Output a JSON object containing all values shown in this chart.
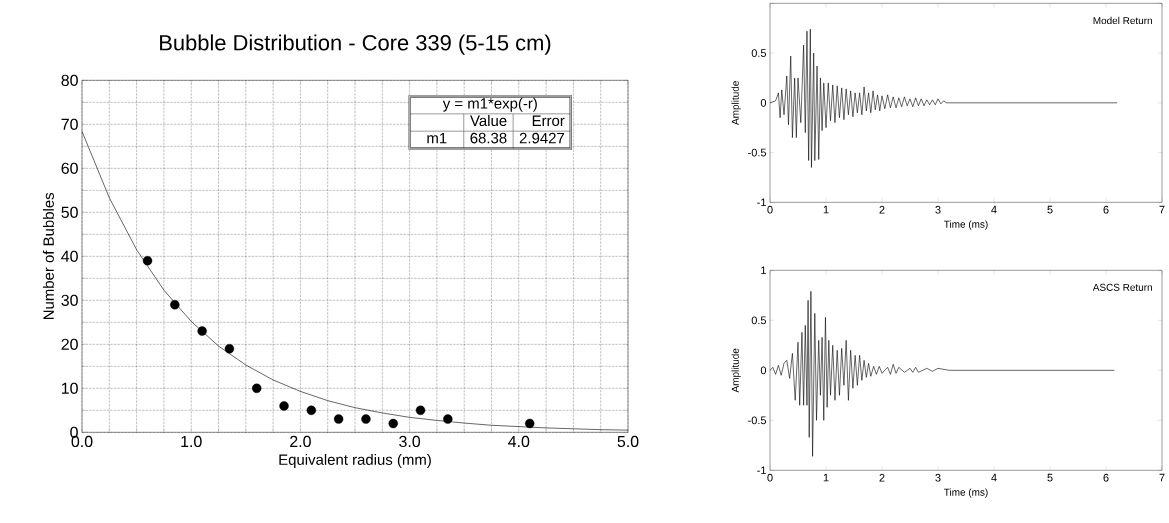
{
  "chart_data": [
    {
      "type": "scatter",
      "title": "Bubble Distribution - Core 339 (5-15 cm)",
      "xlabel": "Equivalent radius (mm)",
      "ylabel": "Number of Bubbles",
      "annotations": [
        "y = m1*exp(-r)",
        "Value",
        "Error",
        "m1",
        "68.38",
        "2.9427"
      ],
      "xlim": [
        0,
        5
      ],
      "ylim": [
        0,
        80
      ],
      "xticks": [
        {
          "value": 0,
          "label": "0.0"
        },
        {
          "value": 0.25,
          "label": null
        },
        {
          "value": 0.5,
          "label": null
        },
        {
          "value": 0.75,
          "label": null
        },
        {
          "value": 1,
          "label": "1.0"
        },
        {
          "value": 1.25,
          "label": null
        },
        {
          "value": 1.5,
          "label": null
        },
        {
          "value": 1.75,
          "label": null
        },
        {
          "value": 2,
          "label": "2.0"
        },
        {
          "value": 2.25,
          "label": null
        },
        {
          "value": 2.5,
          "label": null
        },
        {
          "value": 2.75,
          "label": null
        },
        {
          "value": 3,
          "label": "3.0"
        },
        {
          "value": 3.25,
          "label": null
        },
        {
          "value": 3.5,
          "label": null
        },
        {
          "value": 3.75,
          "label": null
        },
        {
          "value": 4,
          "label": "4.0"
        },
        {
          "value": 4.25,
          "label": null
        },
        {
          "value": 4.5,
          "label": null
        },
        {
          "value": 4.75,
          "label": null
        },
        {
          "value": 5,
          "label": "5.0"
        }
      ],
      "yticks": [
        0,
        {
          "value": 5,
          "label": null
        },
        10,
        {
          "value": 15,
          "label": null
        },
        20,
        {
          "value": 25,
          "label": null
        },
        30,
        {
          "value": 35,
          "label": null
        },
        40,
        {
          "value": 45,
          "label": null
        },
        50,
        {
          "value": 55,
          "label": null
        },
        60,
        {
          "value": 65,
          "label": null
        },
        70,
        {
          "value": 75,
          "label": null
        },
        80
      ],
      "grid": true,
      "series": [
        {
          "type": "scatter",
          "color": "#000000",
          "x": [
            0.6,
            0.85,
            1.1,
            1.35,
            1.6,
            1.85,
            2.1,
            2.35,
            2.6,
            2.85,
            3.1,
            3.35,
            4.1
          ],
          "values": [
            39,
            29,
            23,
            19,
            10,
            6,
            5,
            3,
            3,
            2,
            5,
            3,
            2
          ]
        },
        {
          "type": "line",
          "color": "#000000",
          "x": [
            0,
            0.25,
            0.5,
            0.75,
            1,
            1.25,
            1.5,
            1.75,
            2,
            2.25,
            2.5,
            2.75,
            3,
            3.25,
            3.5,
            3.75,
            4,
            4.25,
            4.5,
            4.75,
            5
          ],
          "values": [
            68.4,
            53.3,
            41.5,
            32.3,
            25.2,
            19.6,
            15.3,
            11.9,
            9.3,
            7.2,
            5.6,
            4.4,
            3.4,
            2.7,
            2.1,
            1.6,
            1.3,
            1.0,
            0.8,
            0.6,
            0.5
          ]
        }
      ]
    },
    {
      "type": "line",
      "xlabel": "Time (ms)",
      "ylabel": "Amplitude",
      "annotations": [
        "Model Return"
      ],
      "xlim": [
        0,
        7
      ],
      "ylim": [
        -1,
        1
      ],
      "xticks": [
        0,
        1,
        2,
        3,
        4,
        5,
        6,
        7
      ],
      "yticks": [
        -1,
        -0.5,
        0,
        0.5,
        {
          "value": 1,
          "label": null
        }
      ],
      "series": [
        {
          "color": "#000000",
          "x": [
            0,
            0.1,
            0.15,
            0.18,
            0.21,
            0.25,
            0.3,
            0.33,
            0.37,
            0.4,
            0.44,
            0.47,
            0.5,
            0.55,
            0.6,
            0.63,
            0.66,
            0.69,
            0.72,
            0.74,
            0.78,
            0.8,
            0.84,
            0.87,
            0.9,
            0.93,
            0.96,
            1.0,
            1.04,
            1.08,
            1.12,
            1.16,
            1.2,
            1.24,
            1.28,
            1.32,
            1.36,
            1.4,
            1.44,
            1.48,
            1.52,
            1.56,
            1.6,
            1.64,
            1.68,
            1.72,
            1.76,
            1.8,
            1.84,
            1.88,
            1.92,
            1.96,
            2.0,
            2.05,
            2.1,
            2.15,
            2.2,
            2.25,
            2.3,
            2.35,
            2.4,
            2.45,
            2.5,
            2.55,
            2.6,
            2.65,
            2.7,
            2.75,
            2.8,
            2.85,
            2.9,
            2.95,
            3.0,
            3.05,
            3.1,
            3.15,
            6.2
          ],
          "values": [
            0,
            0.02,
            0.1,
            -0.15,
            0.13,
            -0.12,
            0.27,
            -0.22,
            0.47,
            -0.35,
            0.25,
            -0.35,
            0.25,
            -0.2,
            0.58,
            -0.3,
            0.72,
            -0.58,
            0.74,
            -0.65,
            0.5,
            -0.58,
            0.37,
            -0.57,
            0.25,
            -0.28,
            0.2,
            -0.25,
            0.2,
            -0.18,
            0.18,
            -0.2,
            0.17,
            -0.15,
            0.15,
            -0.17,
            0.14,
            -0.12,
            0.12,
            -0.14,
            0.1,
            -0.1,
            0.1,
            -0.12,
            0.16,
            -0.08,
            0.1,
            -0.1,
            0.12,
            -0.07,
            0.08,
            -0.08,
            0.07,
            -0.06,
            0.08,
            -0.05,
            0.06,
            -0.05,
            0.05,
            -0.04,
            0.06,
            -0.03,
            0.04,
            -0.04,
            0.05,
            -0.03,
            0.04,
            -0.03,
            0.03,
            -0.02,
            0.03,
            -0.02,
            0.04,
            -0.01,
            0.02,
            0,
            0
          ]
        }
      ]
    },
    {
      "type": "line",
      "xlabel": "Time (ms)",
      "ylabel": "Amplitude",
      "annotations": [
        "ASCS Return"
      ],
      "xlim": [
        0,
        7
      ],
      "ylim": [
        -1,
        1
      ],
      "xticks": [
        0,
        1,
        2,
        3,
        4,
        5,
        6,
        7
      ],
      "yticks": [
        -1,
        -0.5,
        0,
        0.5,
        1
      ],
      "series": [
        {
          "color": "#000000",
          "x": [
            0,
            0.05,
            0.1,
            0.15,
            0.2,
            0.25,
            0.3,
            0.35,
            0.4,
            0.45,
            0.5,
            0.53,
            0.57,
            0.6,
            0.63,
            0.66,
            0.68,
            0.7,
            0.73,
            0.76,
            0.8,
            0.83,
            0.87,
            0.9,
            0.93,
            0.96,
            0.99,
            1.02,
            1.05,
            1.08,
            1.12,
            1.16,
            1.2,
            1.24,
            1.28,
            1.32,
            1.36,
            1.4,
            1.44,
            1.48,
            1.52,
            1.56,
            1.6,
            1.64,
            1.68,
            1.72,
            1.76,
            1.8,
            1.85,
            1.9,
            1.95,
            2.0,
            2.1,
            2.15,
            2.2,
            2.25,
            2.3,
            2.4,
            2.5,
            2.55,
            2.6,
            2.65,
            2.8,
            2.9,
            3.0,
            3.2,
            6.15
          ],
          "values": [
            0,
            0.03,
            -0.04,
            0.05,
            -0.05,
            0.07,
            0.1,
            -0.08,
            0.17,
            -0.3,
            0.28,
            -0.35,
            0.38,
            -0.35,
            0.45,
            -0.35,
            0.7,
            -0.67,
            0.79,
            -0.86,
            0.57,
            -0.5,
            0.3,
            -0.25,
            0.33,
            -0.5,
            0.53,
            -0.37,
            0.3,
            -0.25,
            0.25,
            -0.3,
            0.2,
            -0.25,
            0.22,
            -0.15,
            0.3,
            -0.3,
            0.2,
            -0.18,
            0.15,
            -0.15,
            0.15,
            -0.1,
            0.1,
            -0.07,
            0.07,
            -0.06,
            0.04,
            -0.04,
            0.04,
            -0.03,
            0.03,
            -0.04,
            0.06,
            -0.03,
            0.03,
            -0.02,
            0.02,
            -0.02,
            0.03,
            -0.02,
            0.02,
            -0.01,
            0.02,
            0,
            0
          ]
        }
      ]
    }
  ]
}
